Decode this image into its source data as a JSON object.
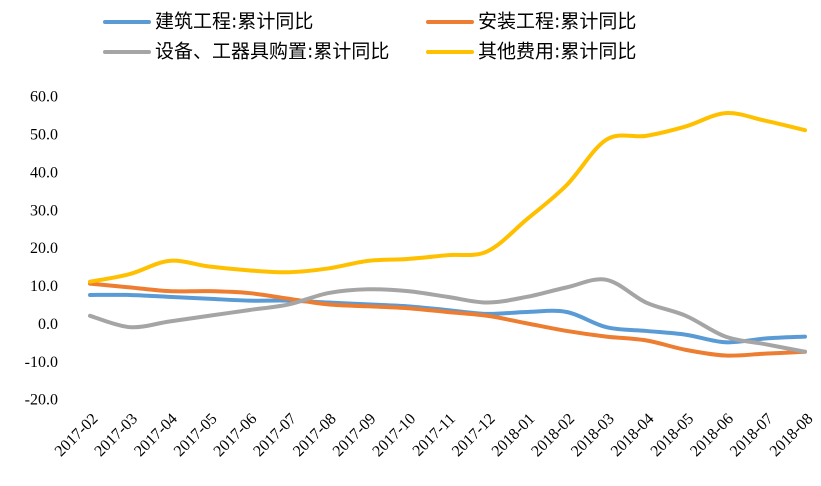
{
  "chart_data": {
    "type": "line",
    "categories": [
      "2017-02",
      "2017-03",
      "2017-04",
      "2017-05",
      "2017-06",
      "2017-07",
      "2017-08",
      "2017-09",
      "2017-10",
      "2017-11",
      "2017-12",
      "2018-01",
      "2018-02",
      "2018-03",
      "2018-04",
      "2018-05",
      "2018-06",
      "2018-07",
      "2018-08"
    ],
    "series": [
      {
        "name": "建筑工程:累计同比",
        "color": "#5b9bd5",
        "values": [
          8,
          8,
          7.5,
          7,
          6.5,
          6.5,
          6,
          5.5,
          5,
          4,
          3,
          3.5,
          3.5,
          -0.5,
          -1.5,
          -2.5,
          -4.5,
          -3.5,
          -3
        ]
      },
      {
        "name": "安装工程:累计同比",
        "color": "#ed7d31",
        "values": [
          11,
          10,
          9,
          9,
          8.5,
          7,
          5.5,
          5,
          4.5,
          3.5,
          2.5,
          0.5,
          -1.5,
          -3,
          -4,
          -6.5,
          -8,
          -7.5,
          -7
        ]
      },
      {
        "name": "设备、工器具购置:累计同比",
        "color": "#a5a5a5",
        "values": [
          2.5,
          -0.5,
          1,
          2.5,
          4,
          5.5,
          8.5,
          9.5,
          9,
          7.5,
          6,
          7.5,
          10,
          12,
          6,
          2.5,
          -3,
          -5,
          -7
        ]
      },
      {
        "name": "其他费用:累计同比",
        "color": "#ffc000",
        "values": [
          11.5,
          13.5,
          17,
          15.5,
          14.5,
          14,
          15,
          17,
          17.5,
          18.5,
          19.5,
          28,
          37,
          49,
          50,
          52.5,
          56,
          54,
          51.5
        ]
      }
    ],
    "ylim": [
      -20,
      60
    ],
    "yticks": [
      {
        "value": 60,
        "label": "60.0"
      },
      {
        "value": 50,
        "label": "50.0"
      },
      {
        "value": 40,
        "label": "40.0"
      },
      {
        "value": 30,
        "label": "30.0"
      },
      {
        "value": 20,
        "label": "20.0"
      },
      {
        "value": 10,
        "label": "10.0"
      },
      {
        "value": 0,
        "label": "0.0"
      },
      {
        "value": -10,
        "label": "-10.0"
      },
      {
        "value": -20,
        "label": "-20.0"
      }
    ],
    "grid": false
  }
}
